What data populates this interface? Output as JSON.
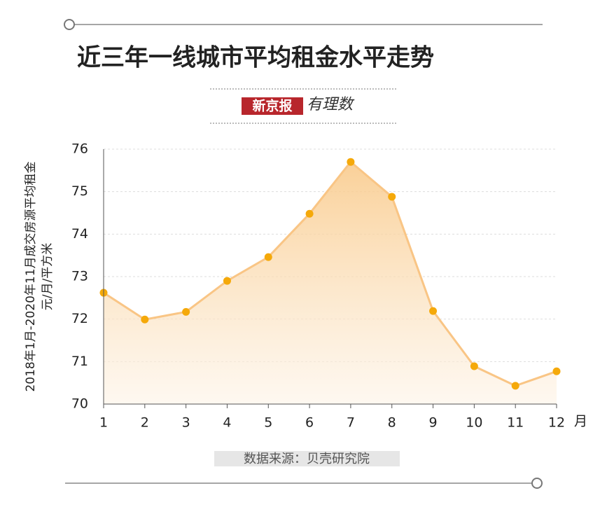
{
  "chart_data": {
    "type": "area",
    "title": "近三年一线城市平均租金水平走势",
    "brand": "新京报",
    "brand_sub": "有理数",
    "y_label": [
      "2018年1月-2020年11月成交房源平均租金",
      "元/月/平方米"
    ],
    "x_unit": "月",
    "source": "数据来源：贝壳研究院",
    "x": [
      1,
      2,
      3,
      4,
      5,
      6,
      7,
      8,
      9,
      10,
      11,
      12
    ],
    "series": [
      {
        "name": "平均租金",
        "color": "#f5a90a",
        "line_color": "#f9c585",
        "values": [
          72.62,
          71.99,
          72.17,
          72.9,
          73.46,
          74.48,
          75.7,
          74.88,
          72.19,
          70.89,
          70.43,
          70.77
        ]
      }
    ],
    "xlim": [
      1,
      12
    ],
    "xticks": [
      1,
      2,
      3,
      4,
      5,
      6,
      7,
      8,
      9,
      10,
      11,
      12
    ],
    "ylim": [
      70,
      76
    ],
    "yticks": [
      70,
      71,
      72,
      73,
      74,
      75,
      76
    ],
    "grid": true
  }
}
